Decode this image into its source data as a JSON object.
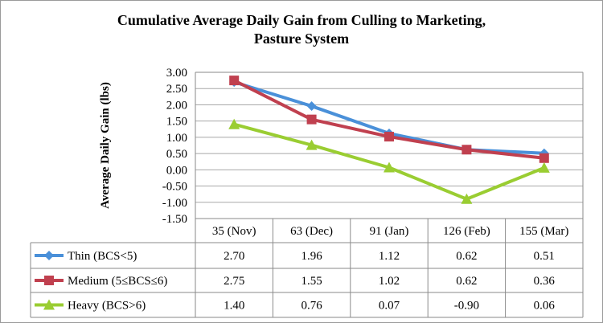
{
  "chart_data": {
    "type": "line",
    "title_line1": "Cumulative Average Daily Gain from Culling to Marketing,",
    "title_line2": "Pasture System",
    "ylabel": "Average Daily Gain (lbs)",
    "ylim": [
      -1.5,
      3.0
    ],
    "yticks": [
      "3.00",
      "2.50",
      "2.00",
      "1.50",
      "1.00",
      "0.50",
      "0.00",
      "-0.50",
      "-1.00",
      "-1.50"
    ],
    "categories": [
      "35 (Nov)",
      "63 (Dec)",
      "91 (Jan)",
      "126 (Feb)",
      "155 (Mar)"
    ],
    "grid": true,
    "data_table": true,
    "series": [
      {
        "name": "Thin (BCS<5)",
        "color": "#4a90d9",
        "marker": "diamond",
        "values": [
          2.7,
          1.96,
          1.12,
          0.62,
          0.51
        ],
        "labels": [
          "2.70",
          "1.96",
          "1.12",
          "0.62",
          "0.51"
        ]
      },
      {
        "name": "Medium (5≤BCS≤6)",
        "color": "#c0404f",
        "marker": "square",
        "values": [
          2.75,
          1.55,
          1.02,
          0.62,
          0.36
        ],
        "labels": [
          "2.75",
          "1.55",
          "1.02",
          "0.62",
          "0.36"
        ]
      },
      {
        "name": "Heavy (BCS>6)",
        "color": "#9acd32",
        "marker": "triangle",
        "values": [
          1.4,
          0.76,
          0.07,
          -0.9,
          0.06
        ],
        "labels": [
          "1.40",
          "0.76",
          "0.07",
          "-0.90",
          "0.06"
        ]
      }
    ]
  }
}
